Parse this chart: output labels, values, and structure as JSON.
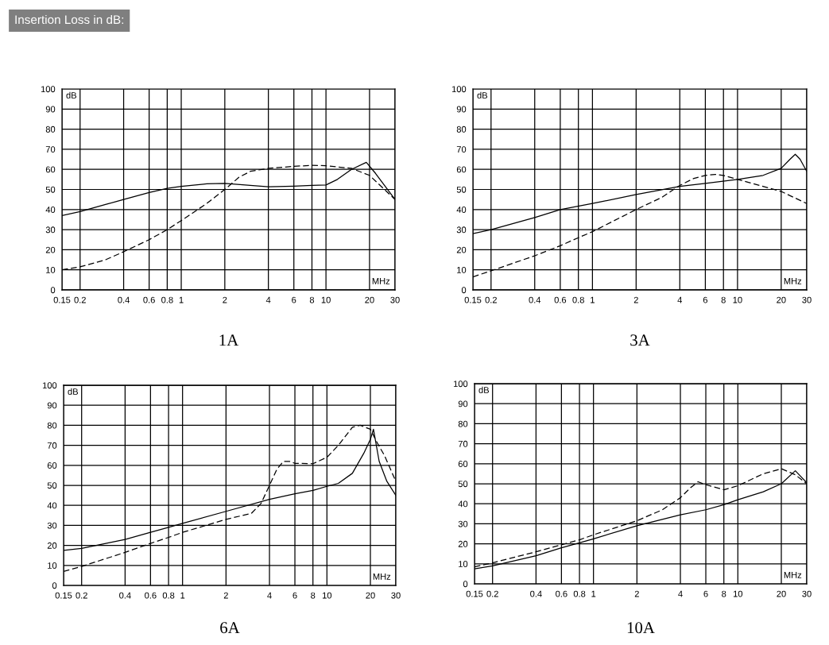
{
  "chart_data": [
    {
      "type": "line",
      "title": "1A",
      "xlabel": "MHz",
      "ylabel": "dB",
      "annotations": [
        "Insertion Loss in dB:"
      ],
      "log": "x",
      "grid": true,
      "xlim": [
        0.15,
        30
      ],
      "ylim": [
        0,
        100
      ],
      "xticks": [
        0.15,
        0.2,
        0.4,
        0.6,
        0.8,
        1,
        2,
        4,
        6,
        8,
        10,
        20,
        30
      ],
      "yticks": [
        0,
        10,
        20,
        30,
        40,
        50,
        60,
        70,
        80,
        90,
        100
      ],
      "series": [
        {
          "color": "#000000",
          "line_style": "solid",
          "x": [
            0.15,
            0.2,
            0.3,
            0.4,
            0.6,
            0.8,
            1,
            1.5,
            2,
            3,
            4,
            6,
            8,
            10,
            12,
            15,
            19,
            22,
            30
          ],
          "values": [
            37,
            39,
            42.5,
            45,
            48.5,
            50.5,
            51.5,
            52.8,
            53,
            52,
            51.3,
            51.6,
            52,
            52.2,
            55,
            60,
            63.5,
            58,
            45
          ]
        },
        {
          "color": "#000000",
          "line_style": "dashed",
          "x": [
            0.15,
            0.2,
            0.3,
            0.4,
            0.6,
            0.8,
            1,
            1.5,
            2,
            2.5,
            3,
            4,
            6,
            8,
            10,
            15,
            20,
            30
          ],
          "values": [
            10,
            11.5,
            15,
            19,
            25,
            30,
            34.5,
            43,
            50,
            56,
            59,
            60.5,
            61.5,
            62,
            61.8,
            60.5,
            57,
            45
          ]
        }
      ]
    },
    {
      "type": "line",
      "title": "3A",
      "xlabel": "MHz",
      "ylabel": "dB",
      "log": "x",
      "grid": true,
      "xlim": [
        0.15,
        30
      ],
      "ylim": [
        0,
        100
      ],
      "xticks": [
        0.15,
        0.2,
        0.4,
        0.6,
        0.8,
        1,
        2,
        4,
        6,
        8,
        10,
        20,
        30
      ],
      "yticks": [
        0,
        10,
        20,
        30,
        40,
        50,
        60,
        70,
        80,
        90,
        100
      ],
      "series": [
        {
          "color": "#000000",
          "line_style": "solid",
          "x": [
            0.15,
            0.2,
            0.4,
            0.6,
            1,
            2,
            4,
            6,
            10,
            15,
            20,
            23,
            25,
            27,
            30
          ],
          "values": [
            28,
            30,
            36,
            40,
            43,
            47.5,
            51.5,
            53,
            55,
            57,
            60.5,
            65,
            67.5,
            65,
            59
          ]
        },
        {
          "color": "#000000",
          "line_style": "dashed",
          "x": [
            0.15,
            0.2,
            0.4,
            0.6,
            0.8,
            1,
            2,
            3,
            4,
            5,
            6,
            7,
            8,
            10,
            20,
            30
          ],
          "values": [
            6.5,
            9.5,
            17,
            22,
            26,
            29,
            40,
            46,
            52,
            55.5,
            57,
            57.5,
            57,
            55,
            49,
            43
          ]
        }
      ]
    },
    {
      "type": "line",
      "title": "6A",
      "xlabel": "MHz",
      "ylabel": "dB",
      "log": "x",
      "grid": true,
      "xlim": [
        0.15,
        30
      ],
      "ylim": [
        0,
        100
      ],
      "xticks": [
        0.15,
        0.2,
        0.4,
        0.6,
        0.8,
        1,
        2,
        4,
        6,
        8,
        10,
        20,
        30
      ],
      "yticks": [
        0,
        10,
        20,
        30,
        40,
        50,
        60,
        70,
        80,
        90,
        100
      ],
      "series": [
        {
          "color": "#000000",
          "line_style": "solid",
          "x": [
            0.15,
            0.2,
            0.4,
            0.6,
            0.8,
            1,
            2,
            4,
            6,
            8,
            10,
            12,
            15,
            18,
            20,
            21,
            23,
            26,
            30
          ],
          "values": [
            17.5,
            18.5,
            23,
            26.5,
            29,
            31,
            37,
            43,
            45.8,
            47.5,
            49.5,
            51,
            56,
            66,
            73,
            78,
            62,
            52,
            45
          ]
        },
        {
          "color": "#000000",
          "line_style": "dashed",
          "x": [
            0.15,
            0.2,
            0.4,
            0.6,
            0.8,
            1,
            2,
            3,
            3.5,
            4,
            4.5,
            5,
            5.5,
            6,
            8,
            10,
            12,
            15,
            17,
            20,
            22,
            25,
            30
          ],
          "values": [
            7,
            9.5,
            16.5,
            21,
            24,
            26.5,
            33,
            36,
            41,
            50,
            58,
            62,
            62,
            61,
            60.8,
            64,
            70,
            79,
            80,
            78,
            72,
            65,
            52
          ]
        }
      ]
    },
    {
      "type": "line",
      "title": "10A",
      "xlabel": "MHz",
      "ylabel": "dB",
      "log": "x",
      "grid": true,
      "xlim": [
        0.15,
        30
      ],
      "ylim": [
        0,
        100
      ],
      "xticks": [
        0.15,
        0.2,
        0.4,
        0.6,
        0.8,
        1,
        2,
        4,
        6,
        8,
        10,
        20,
        30
      ],
      "yticks": [
        0,
        10,
        20,
        30,
        40,
        50,
        60,
        70,
        80,
        90,
        100
      ],
      "series": [
        {
          "color": "#000000",
          "line_style": "solid",
          "x": [
            0.15,
            0.2,
            0.4,
            0.6,
            0.8,
            1,
            2,
            4,
            6,
            8,
            10,
            15,
            20,
            25,
            30
          ],
          "values": [
            7.5,
            9,
            14,
            18,
            20.5,
            22.5,
            29,
            34.5,
            37,
            39.5,
            42,
            46,
            50,
            56.5,
            50.5
          ]
        },
        {
          "color": "#000000",
          "line_style": "dashed",
          "x": [
            0.15,
            0.2,
            0.4,
            0.6,
            0.8,
            1,
            2,
            3,
            4,
            4.7,
            5.3,
            6,
            8,
            10,
            15,
            20,
            25,
            30
          ],
          "values": [
            8.5,
            10.5,
            16,
            19.5,
            22,
            24.5,
            31.5,
            37,
            43,
            48,
            51,
            49.5,
            47,
            49,
            55,
            57.5,
            54.5,
            50
          ]
        }
      ]
    }
  ]
}
